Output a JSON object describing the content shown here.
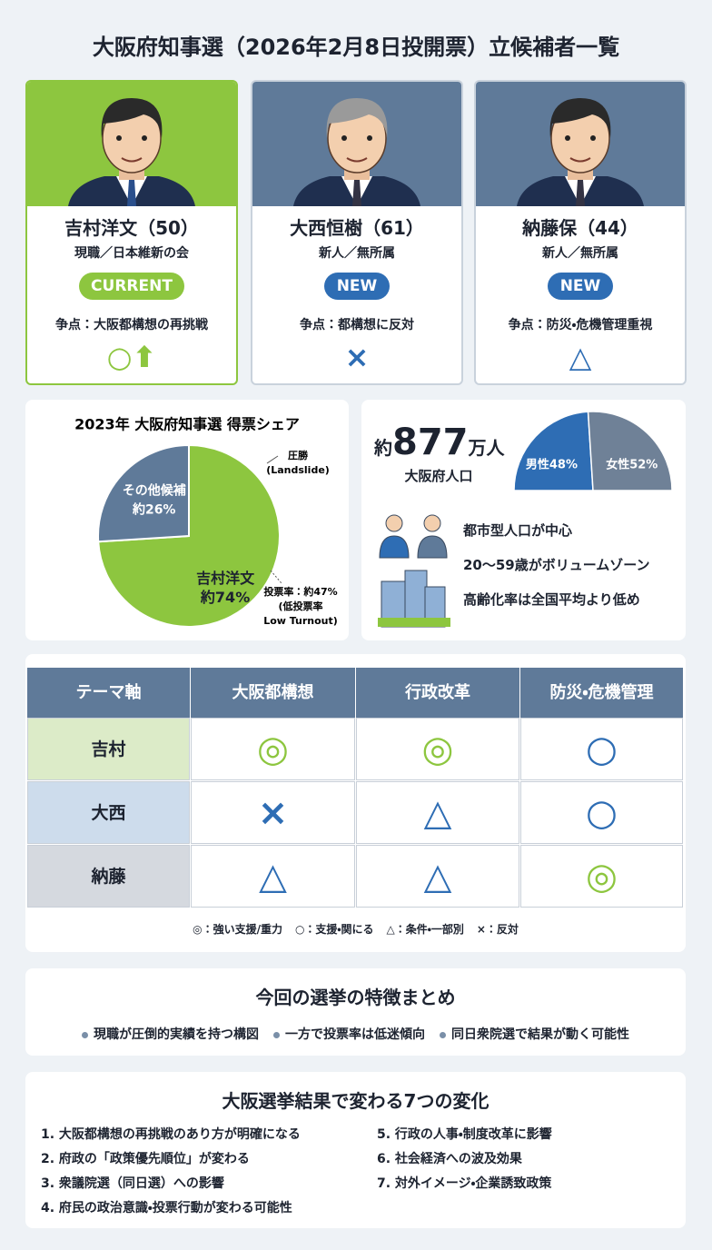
{
  "title": "大阪府知事選（2026年2月8日投開票）立候補者一覧",
  "candidates": [
    {
      "name": "吉村洋文（50）",
      "affiliation": "現職／日本維新の会",
      "badge": "CURRENT",
      "issue": "争点：大阪都構想の再挑戦",
      "symbol": "○⬆"
    },
    {
      "name": "大西恒樹（61）",
      "affiliation": "新人／無所属",
      "badge": "NEW",
      "issue": "争点：都構想に反対",
      "symbol": "×"
    },
    {
      "name": "納藤保（44）",
      "affiliation": "新人／無所属",
      "badge": "NEW",
      "issue": "争点：防災・危機管理重視",
      "symbol": "△"
    }
  ],
  "chart_data": [
    {
      "type": "pie",
      "title": "2023年 大阪府知事選 得票シェア",
      "categories": [
        "吉村洋文",
        "その他候補"
      ],
      "values": [
        74,
        26
      ],
      "value_labels": [
        "約74%",
        "約26%"
      ],
      "colors": [
        "#8dc63f",
        "#5f7a99"
      ],
      "annotations": [
        {
          "lines": [
            "圧勝",
            "(Landslide)"
          ]
        },
        {
          "lines": [
            "投票率：約47%",
            "(低投票率",
            "Low Turnout)"
          ]
        }
      ]
    },
    {
      "type": "pie",
      "half": true,
      "values": [
        48,
        52
      ],
      "value_labels": [
        "男性48%",
        "女性52%"
      ],
      "colors": [
        "#2e6db4",
        "#6f8197"
      ]
    }
  ],
  "population": {
    "prefix": "約",
    "number": "877",
    "unit": "万人",
    "label": "大阪府人口",
    "features": [
      "都市型人口が中心",
      "20〜59歳がボリュームゾーン",
      "高齢化率は全国平均より低め"
    ]
  },
  "table": {
    "header": [
      "テーマ軸",
      "大阪都構想",
      "行政改革",
      "防災・危機管理"
    ],
    "rows": [
      [
        "吉村",
        "◎",
        "◎",
        "○"
      ],
      [
        "大西",
        "×",
        "△",
        "○"
      ],
      [
        "納藤",
        "△",
        "△",
        "◎"
      ]
    ]
  },
  "legend": [
    "◎：強い支援/重力",
    "○：支援・関にる",
    "△：条件・一部別",
    "×：反対"
  ],
  "summary": {
    "title": "今回の選挙の特徴まとめ",
    "items": [
      "現職が圧倒的実績を持つ構図",
      "一方で投票率は低迷傾向",
      "同日衆院選で結果が動く可能性"
    ]
  },
  "changes": {
    "title": "大阪選挙結果で変わる7つの変化",
    "items": [
      "1. 大阪都構想の再挑戦のあり方が明確になる",
      "2. 府政の「政策優先順位」が変わる",
      "3. 衆議院選（同日選）への影響",
      "4. 府民の政治意識・投票行動が変わる可能性",
      "5. 行政の人事・制度改革に影響",
      "6. 社会経済への波及効果",
      "7. 対外イメージ・企業誘致政策"
    ]
  }
}
